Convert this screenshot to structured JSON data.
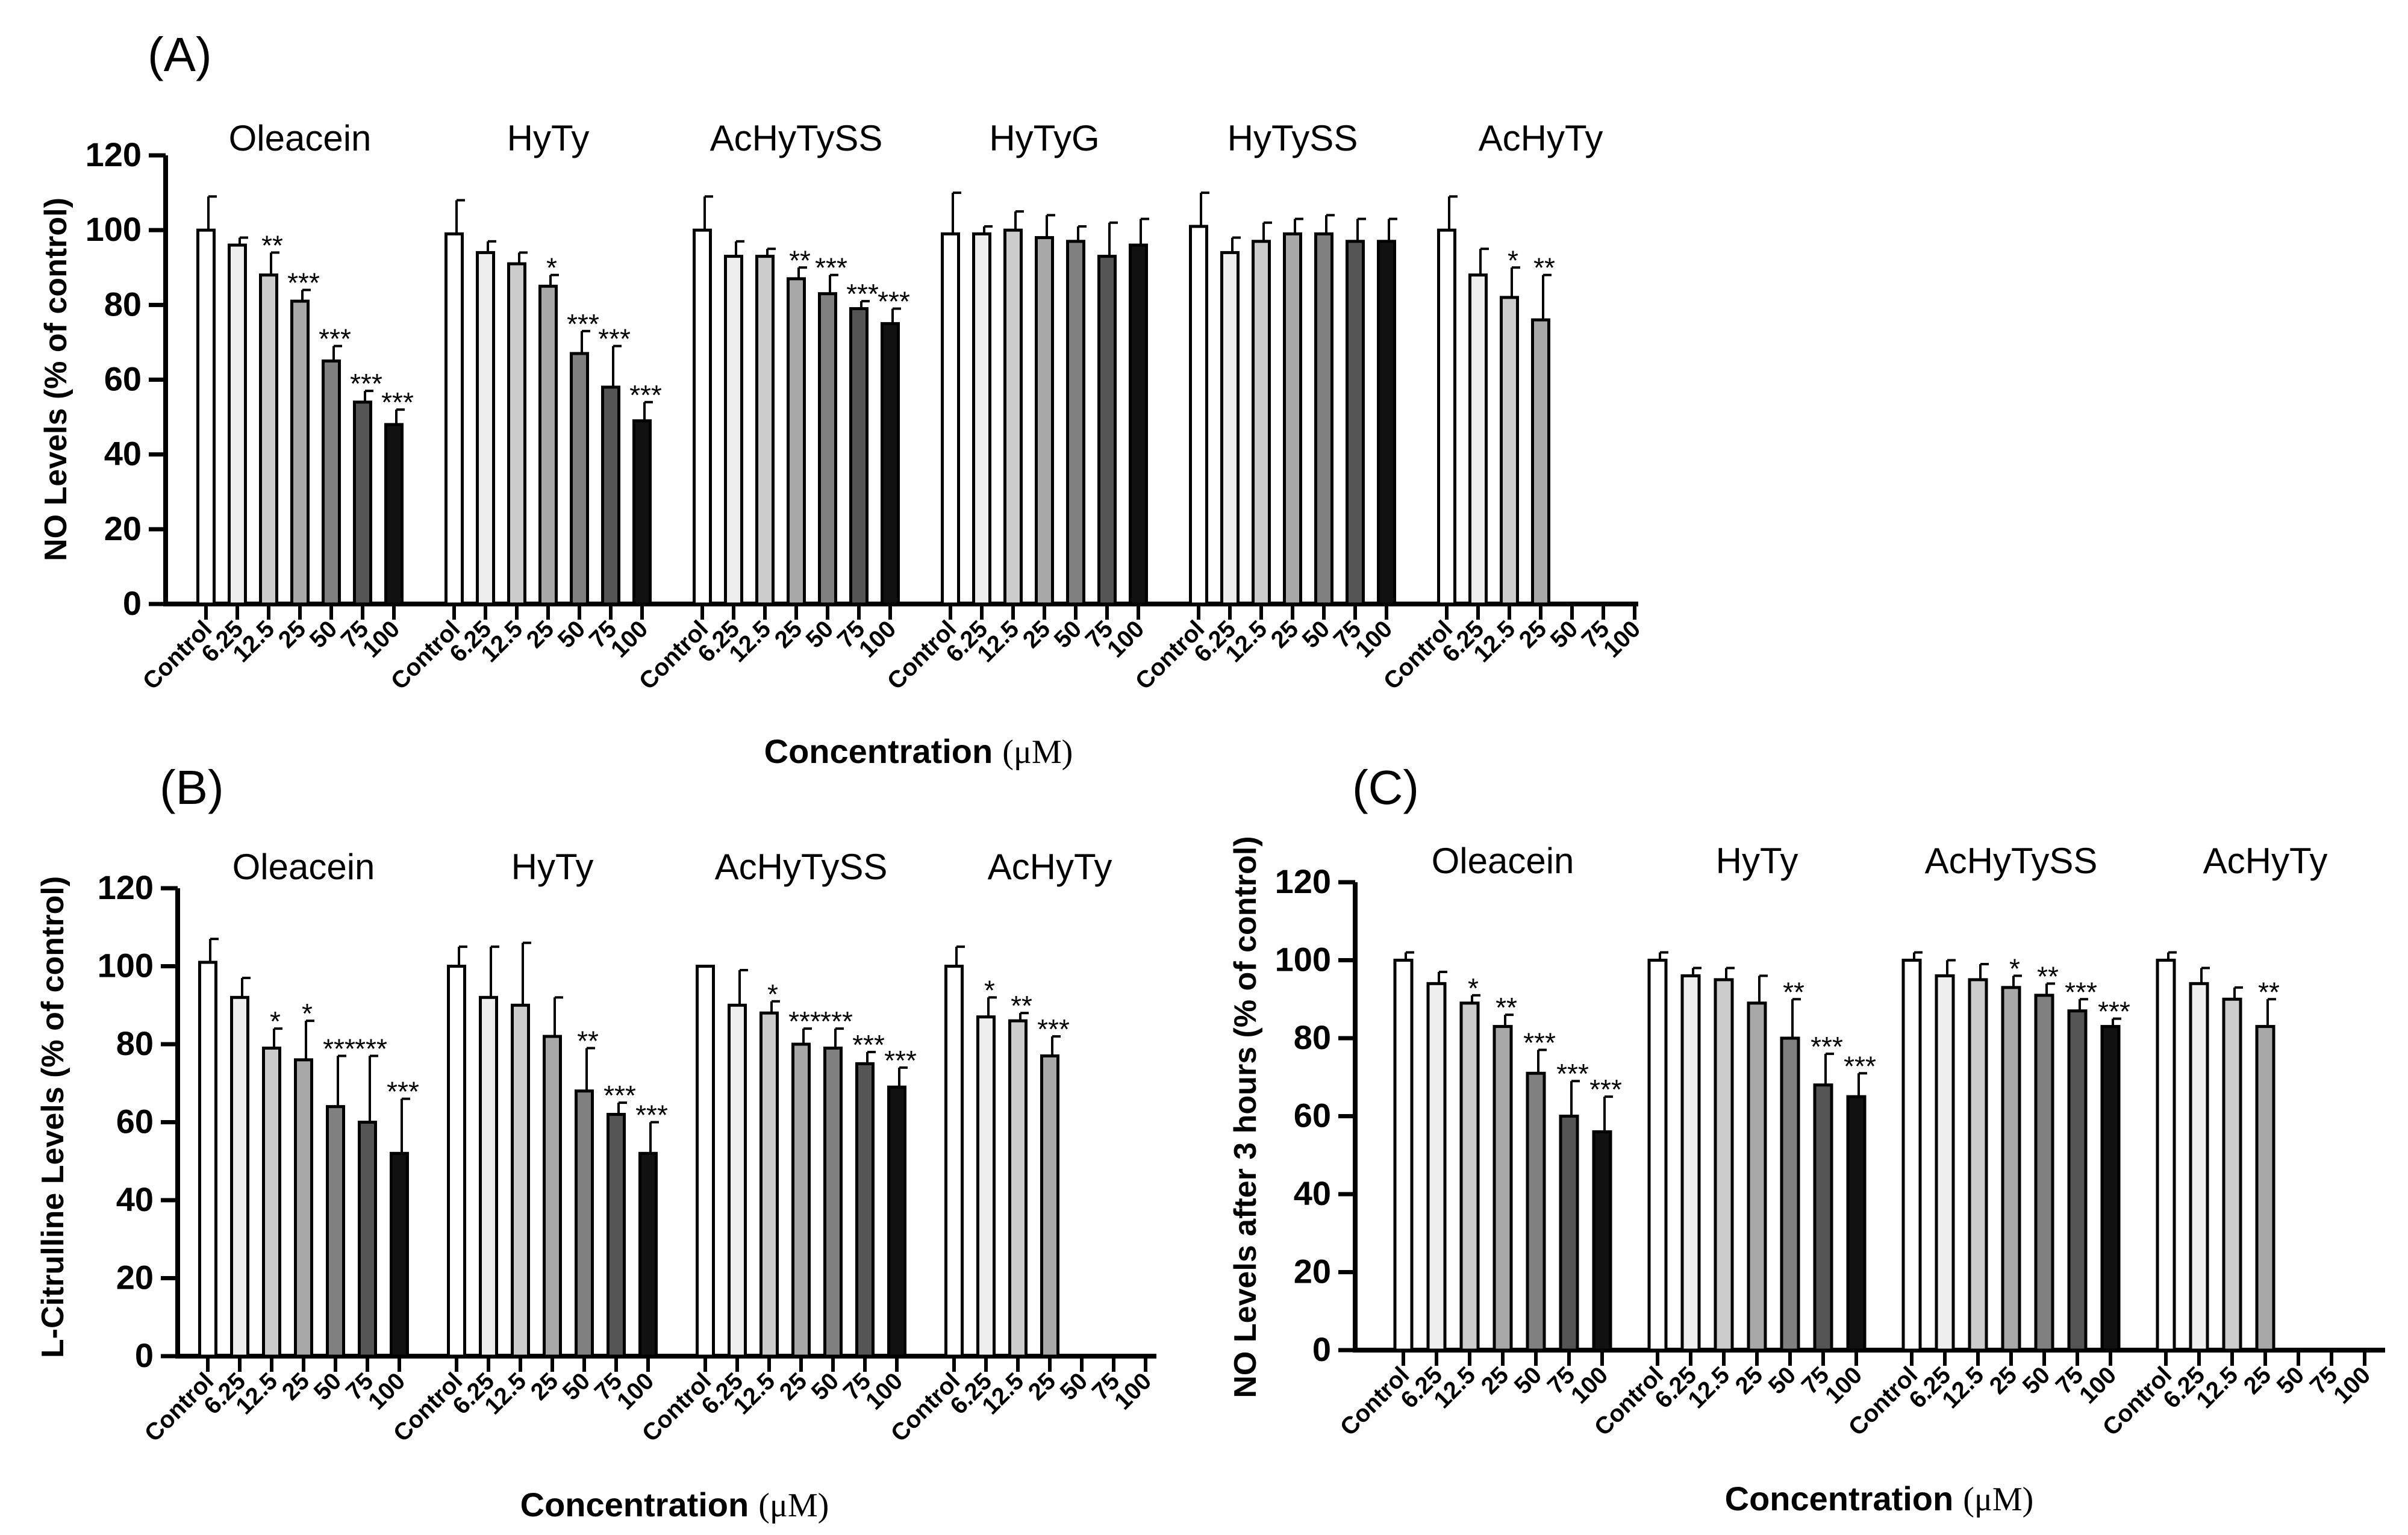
{
  "figure": {
    "unit_label": "μM"
  },
  "chart_data": [
    {
      "id": "A",
      "type": "bar",
      "panel_label": "(A)",
      "ylabel": "NO Levels (% of control)",
      "xlabel": "Concentration",
      "xlabel_unit": "(μM)",
      "ylim": [
        0,
        120
      ],
      "yticks": [
        "0",
        "20",
        "40",
        "60",
        "80",
        "100",
        "120"
      ],
      "categories": [
        "Control",
        "6.25",
        "12.5",
        "25",
        "50",
        "75",
        "100"
      ],
      "groups": [
        {
          "name": "Oleacein",
          "values": [
            100,
            96,
            88,
            81,
            65,
            54,
            48
          ],
          "errors": [
            9,
            2,
            6,
            3,
            4,
            3,
            4
          ],
          "labels": [
            "",
            "",
            "**",
            "***",
            "***",
            "***",
            "***"
          ]
        },
        {
          "name": "HyTy",
          "values": [
            99,
            94,
            91,
            85,
            67,
            58,
            49
          ],
          "errors": [
            9,
            3,
            3,
            3,
            6,
            11,
            5
          ],
          "labels": [
            "",
            "",
            "",
            "*",
            "***",
            "***",
            "***"
          ]
        },
        {
          "name": "AcHyTySS",
          "values": [
            100,
            93,
            93,
            87,
            83,
            79,
            75
          ],
          "errors": [
            9,
            4,
            2,
            3,
            5,
            2,
            4
          ],
          "labels": [
            "",
            "",
            "",
            "**",
            "***",
            "***",
            "***"
          ]
        },
        {
          "name": "HyTyG",
          "values": [
            99,
            99,
            100,
            98,
            97,
            93,
            96
          ],
          "errors": [
            11,
            2,
            5,
            6,
            4,
            9,
            7
          ],
          "labels": [
            "",
            "",
            "",
            "",
            "",
            "",
            ""
          ]
        },
        {
          "name": "HyTySS",
          "values": [
            101,
            94,
            97,
            99,
            99,
            97,
            97
          ],
          "errors": [
            9,
            4,
            5,
            4,
            5,
            6,
            6
          ],
          "labels": [
            "",
            "",
            "",
            "",
            "",
            "",
            ""
          ]
        },
        {
          "name": "AcHyTy",
          "values": [
            100,
            88,
            82,
            76,
            null,
            null,
            null
          ],
          "errors": [
            9,
            7,
            8,
            12,
            0,
            0,
            0
          ],
          "labels": [
            "",
            "",
            "*",
            "**",
            "",
            "",
            ""
          ]
        }
      ]
    },
    {
      "id": "B",
      "type": "bar",
      "panel_label": "(B)",
      "ylabel": "L-Citrulline Levels (% of control)",
      "xlabel": "Concentration",
      "xlabel_unit": "(μM)",
      "ylim": [
        0,
        120
      ],
      "yticks": [
        "0",
        "20",
        "40",
        "60",
        "80",
        "100",
        "120"
      ],
      "categories": [
        "Control",
        "6.25",
        "12.5",
        "25",
        "50",
        "75",
        "100"
      ],
      "groups": [
        {
          "name": "Oleacein",
          "values": [
            101,
            92,
            79,
            76,
            64,
            60,
            52
          ],
          "errors": [
            6,
            5,
            5,
            10,
            13,
            17,
            14
          ],
          "labels": [
            "",
            "",
            "*",
            "*",
            "***",
            "***",
            "***"
          ]
        },
        {
          "name": "HyTy",
          "values": [
            100,
            92,
            90,
            82,
            68,
            62,
            52
          ],
          "errors": [
            5,
            13,
            16,
            10,
            11,
            3,
            8
          ],
          "labels": [
            "",
            "",
            "",
            "",
            "**",
            "***",
            "***"
          ]
        },
        {
          "name": "AcHyTySS",
          "values": [
            100,
            90,
            88,
            80,
            79,
            75,
            69
          ],
          "errors": [
            0,
            9,
            3,
            4,
            5,
            3,
            5
          ],
          "labels": [
            "",
            "",
            "*",
            "***",
            "***",
            "***",
            "***"
          ]
        },
        {
          "name": "AcHyTy",
          "values": [
            100,
            87,
            86,
            77,
            null,
            null,
            null
          ],
          "errors": [
            5,
            5,
            2,
            5,
            0,
            0,
            0
          ],
          "labels": [
            "",
            "*",
            "**",
            "***",
            "",
            "",
            ""
          ]
        }
      ]
    },
    {
      "id": "C",
      "type": "bar",
      "panel_label": "(C)",
      "ylabel": "NO Levels after 3 hours (% of control)",
      "xlabel": "Concentration",
      "xlabel_unit": "(μM)",
      "ylim": [
        0,
        120
      ],
      "yticks": [
        "0",
        "20",
        "40",
        "60",
        "80",
        "100",
        "120"
      ],
      "categories": [
        "Control",
        "6.25",
        "12.5",
        "25",
        "50",
        "75",
        "100"
      ],
      "groups": [
        {
          "name": "Oleacein",
          "values": [
            100,
            94,
            89,
            83,
            71,
            60,
            56
          ],
          "errors": [
            2,
            3,
            2,
            3,
            6,
            9,
            9
          ],
          "labels": [
            "",
            "",
            "*",
            "**",
            "***",
            "***",
            "***"
          ]
        },
        {
          "name": "HyTy",
          "values": [
            100,
            96,
            95,
            89,
            80,
            68,
            65
          ],
          "errors": [
            2,
            2,
            3,
            7,
            10,
            8,
            6
          ],
          "labels": [
            "",
            "",
            "",
            "",
            "**",
            "***",
            "***"
          ]
        },
        {
          "name": "AcHyTySS",
          "values": [
            100,
            96,
            95,
            93,
            91,
            87,
            83
          ],
          "errors": [
            2,
            4,
            4,
            3,
            3,
            3,
            2
          ],
          "labels": [
            "",
            "",
            "",
            "*",
            "**",
            "***",
            "***"
          ]
        },
        {
          "name": "AcHyTy",
          "values": [
            100,
            94,
            90,
            83,
            null,
            null,
            null
          ],
          "errors": [
            2,
            4,
            3,
            7,
            0,
            0,
            0
          ],
          "labels": [
            "",
            "",
            "",
            "**",
            "",
            "",
            ""
          ]
        }
      ]
    }
  ]
}
